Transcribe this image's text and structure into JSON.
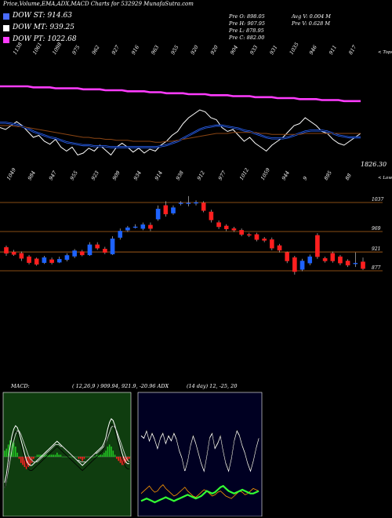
{
  "header": {
    "title": "Price,Volume,EMA,ADX,MACD Charts for 532929 MunafaSutra.com"
  },
  "legend": [
    {
      "label": "DOW ST: 914.63",
      "color": "#4a6cff"
    },
    {
      "label": "DOW MT: 939.25",
      "color": "#ffffff"
    },
    {
      "label": "DOW PT: 1022.68",
      "color": "#ff3cff"
    }
  ],
  "stats": {
    "col1": [
      "Pre  O: 898.05",
      "Pre  H: 907.95",
      "Pre  L: 878.95",
      "Pre  C: 882.00"
    ],
    "col2": [
      "Avg V: 0.004  M",
      "Pre  V: 0.628  M"
    ]
  },
  "colors": {
    "up": "#1e63ff",
    "down": "#ff1f1f",
    "ema_magenta": "#ff3cff",
    "ema_blue": "#2b66ff",
    "ema_brown": "#8b4513",
    "grid": "#b5651d",
    "macd_bg": "#0f3d0f",
    "adx_bg": "#000022"
  },
  "chart_data": [
    {
      "type": "line",
      "name": "price-ema-panel",
      "top_labels": [
        "1138",
        "1061",
        "1098",
        "975",
        "962",
        "927",
        "916",
        "963",
        "955",
        "920",
        "920",
        "904",
        "933",
        "931",
        "1035",
        "946",
        "911",
        "817"
      ],
      "bottom_labels": [
        "1049",
        "984",
        "947",
        "955",
        "923",
        "909",
        "934",
        "914",
        "938",
        "912",
        "977",
        "1012",
        "1059",
        "944",
        "9",
        "895",
        "88"
      ],
      "right_label_top": "< Tops",
      "right_label_bottom": "< Lows",
      "last_value_label": "1826.30",
      "series": [
        {
          "role": "price",
          "values": [
            62,
            64,
            60,
            56,
            60,
            66,
            72,
            70,
            76,
            79,
            74,
            82,
            86,
            82,
            90,
            88,
            83,
            86,
            80,
            85,
            90,
            82,
            78,
            82,
            87,
            83,
            88,
            84,
            86,
            80,
            76,
            70,
            66,
            58,
            52,
            48,
            44,
            46,
            52,
            54,
            62,
            66,
            64,
            70,
            76,
            72,
            78,
            82,
            86,
            80,
            76,
            72,
            66,
            60,
            58,
            52,
            56,
            60,
            66,
            68,
            74,
            78,
            80,
            76,
            72,
            68
          ]
        },
        {
          "role": "ema_fast",
          "values": [
            57,
            57,
            58,
            59,
            61,
            63,
            66,
            68,
            70,
            72,
            73,
            75,
            77,
            78,
            79,
            80,
            80,
            81,
            81,
            81,
            82,
            82,
            82,
            82,
            82,
            82,
            82,
            82,
            82,
            81,
            80,
            78,
            76,
            73,
            70,
            67,
            64,
            62,
            61,
            60,
            60,
            61,
            62,
            63,
            65,
            66,
            68,
            70,
            72,
            73,
            73,
            73,
            72,
            70,
            68,
            66,
            65,
            65,
            65,
            66,
            68,
            70,
            71,
            72,
            72,
            72
          ]
        },
        {
          "role": "ema_mid",
          "values": [
            60,
            60,
            60,
            61,
            61,
            62,
            63,
            64,
            65,
            66,
            67,
            68,
            69,
            70,
            71,
            72,
            72,
            73,
            73,
            74,
            74,
            75,
            75,
            75,
            76,
            76,
            76,
            76,
            77,
            77,
            76,
            76,
            75,
            74,
            73,
            72,
            71,
            70,
            69,
            68,
            68,
            68,
            67,
            67,
            67,
            67,
            67,
            68,
            68,
            69,
            69,
            69,
            69,
            69,
            69,
            68,
            68,
            68,
            68,
            68,
            68,
            68,
            68,
            68,
            68,
            68
          ]
        },
        {
          "role": "ema_slow",
          "values": [
            20,
            20,
            20,
            20,
            20,
            20,
            21,
            21,
            21,
            21,
            22,
            22,
            22,
            22,
            22,
            23,
            23,
            23,
            23,
            24,
            24,
            24,
            24,
            25,
            25,
            25,
            25,
            26,
            26,
            26,
            27,
            27,
            27,
            27,
            28,
            28,
            28,
            28,
            29,
            29,
            29,
            29,
            30,
            30,
            30,
            30,
            31,
            31,
            31,
            31,
            32,
            32,
            32,
            32,
            33,
            33,
            33,
            33,
            34,
            34,
            34,
            34,
            35,
            35,
            35,
            35
          ]
        }
      ]
    },
    {
      "type": "bar",
      "name": "candles-panel",
      "price_levels": [
        "1037",
        "969",
        "921",
        "877"
      ],
      "candles": [
        {
          "o": 932,
          "c": 918,
          "h": 936,
          "l": 912
        },
        {
          "o": 921,
          "c": 915,
          "h": 926,
          "l": 912
        },
        {
          "o": 918,
          "c": 906,
          "h": 922,
          "l": 900
        },
        {
          "o": 910,
          "c": 896,
          "h": 914,
          "l": 892
        },
        {
          "o": 905,
          "c": 892,
          "h": 908,
          "l": 889
        },
        {
          "o": 896,
          "c": 908,
          "h": 912,
          "l": 893
        },
        {
          "o": 903,
          "c": 896,
          "h": 908,
          "l": 892
        },
        {
          "o": 897,
          "c": 904,
          "h": 910,
          "l": 895
        },
        {
          "o": 903,
          "c": 913,
          "h": 918,
          "l": 899
        },
        {
          "o": 911,
          "c": 924,
          "h": 928,
          "l": 907
        },
        {
          "o": 922,
          "c": 914,
          "h": 926,
          "l": 911
        },
        {
          "o": 914,
          "c": 938,
          "h": 944,
          "l": 912
        },
        {
          "o": 938,
          "c": 930,
          "h": 944,
          "l": 926
        },
        {
          "o": 928,
          "c": 920,
          "h": 933,
          "l": 916
        },
        {
          "o": 916,
          "c": 952,
          "h": 958,
          "l": 914
        },
        {
          "o": 955,
          "c": 970,
          "h": 976,
          "l": 950
        },
        {
          "o": 972,
          "c": 978,
          "h": 982,
          "l": 968
        },
        {
          "o": 980,
          "c": 980,
          "h": 986,
          "l": 976
        },
        {
          "o": 976,
          "c": 985,
          "h": 990,
          "l": 972
        },
        {
          "o": 984,
          "c": 976,
          "h": 990,
          "l": 970
        },
        {
          "o": 998,
          "c": 1022,
          "h": 1030,
          "l": 994
        },
        {
          "o": 1030,
          "c": 1010,
          "h": 1040,
          "l": 1004
        },
        {
          "o": 1012,
          "c": 1025,
          "h": 1030,
          "l": 1008
        },
        {
          "o": 1035,
          "c": 1036,
          "h": 1040,
          "l": 1030
        },
        {
          "o": 1036,
          "c": 1036,
          "h": 1052,
          "l": 1028
        },
        {
          "o": 1036,
          "c": 1037,
          "h": 1042,
          "l": 1030
        },
        {
          "o": 1036,
          "c": 1018,
          "h": 1040,
          "l": 1014
        },
        {
          "o": 1015,
          "c": 996,
          "h": 1020,
          "l": 990
        },
        {
          "o": 990,
          "c": 980,
          "h": 995,
          "l": 975
        },
        {
          "o": 982,
          "c": 975,
          "h": 986,
          "l": 970
        },
        {
          "o": 976,
          "c": 972,
          "h": 980,
          "l": 968
        },
        {
          "o": 972,
          "c": 962,
          "h": 976,
          "l": 958
        },
        {
          "o": 962,
          "c": 960,
          "h": 966,
          "l": 956
        },
        {
          "o": 962,
          "c": 950,
          "h": 966,
          "l": 946
        },
        {
          "o": 952,
          "c": 948,
          "h": 956,
          "l": 944
        },
        {
          "o": 950,
          "c": 930,
          "h": 955,
          "l": 925
        },
        {
          "o": 936,
          "c": 925,
          "h": 940,
          "l": 920
        },
        {
          "o": 920,
          "c": 900,
          "h": 922,
          "l": 895
        },
        {
          "o": 908,
          "c": 875,
          "h": 912,
          "l": 868
        },
        {
          "o": 880,
          "c": 900,
          "h": 905,
          "l": 876
        },
        {
          "o": 895,
          "c": 910,
          "h": 915,
          "l": 890
        },
        {
          "o": 960,
          "c": 910,
          "h": 965,
          "l": 905
        },
        {
          "o": 906,
          "c": 900,
          "h": 910,
          "l": 896
        },
        {
          "o": 918,
          "c": 900,
          "h": 922,
          "l": 896
        },
        {
          "o": 910,
          "c": 895,
          "h": 914,
          "l": 890
        },
        {
          "o": 900,
          "c": 890,
          "h": 904,
          "l": 886
        },
        {
          "o": 895,
          "c": 895,
          "h": 920,
          "l": 886
        },
        {
          "o": 898,
          "c": 882,
          "h": 908,
          "l": 879
        }
      ]
    },
    {
      "type": "line",
      "name": "macd-panel",
      "series": [
        {
          "role": "macd",
          "values": [
            -15,
            -10,
            -2,
            6,
            12,
            16,
            18,
            17,
            14,
            10,
            6,
            2,
            -2,
            -4,
            -5,
            -5,
            -4,
            -3,
            -2,
            -1,
            0,
            1,
            2,
            3,
            4,
            5,
            6,
            7,
            8,
            9,
            8,
            7,
            6,
            5,
            4,
            3,
            2,
            1,
            0,
            -1,
            -2,
            -3,
            -4,
            -5,
            -4,
            -3,
            -2,
            -1,
            0,
            1,
            2,
            3,
            4,
            5,
            6,
            8,
            11,
            16,
            20,
            22,
            21,
            18,
            14,
            10,
            6,
            2,
            -1,
            -3,
            -4,
            -4
          ]
        },
        {
          "role": "signal",
          "values": [
            -18,
            -14,
            -8,
            -2,
            4,
            9,
            13,
            15,
            15,
            13,
            10,
            7,
            4,
            1,
            -1,
            -2,
            -3,
            -3,
            -3,
            -2,
            -1,
            0,
            1,
            2,
            3,
            4,
            5,
            6,
            7,
            7,
            7,
            6,
            6,
            5,
            4,
            3,
            2,
            1,
            0,
            -1,
            -2,
            -2,
            -3,
            -3,
            -3,
            -3,
            -2,
            -1,
            0,
            1,
            2,
            2,
            3,
            4,
            5,
            6,
            8,
            11,
            14,
            17,
            18,
            17,
            15,
            12,
            9,
            6,
            3,
            0,
            -2,
            -3
          ]
        },
        {
          "role": "histogram",
          "values": [
            3,
            4,
            6,
            8,
            8,
            7,
            5,
            2,
            -1,
            -3,
            -4,
            -5,
            -6,
            -5,
            -4,
            -3,
            -1,
            0,
            1,
            1,
            1,
            1,
            1,
            1,
            1,
            1,
            1,
            1,
            1,
            2,
            1,
            1,
            0,
            0,
            0,
            0,
            0,
            0,
            0,
            0,
            0,
            -1,
            -1,
            -2,
            -1,
            0,
            0,
            0,
            0,
            0,
            0,
            1,
            1,
            1,
            1,
            2,
            3,
            5,
            6,
            5,
            3,
            1,
            -1,
            -2,
            -3,
            -4,
            -4,
            -3,
            -2,
            -1
          ]
        }
      ]
    },
    {
      "type": "line",
      "name": "adx-panel",
      "series": [
        {
          "role": "adx",
          "values": [
            58,
            56,
            62,
            54,
            60,
            55,
            48,
            56,
            60,
            52,
            58,
            54,
            60,
            55,
            46,
            40,
            30,
            38,
            50,
            58,
            52,
            44,
            36,
            30,
            42,
            56,
            60,
            48,
            52,
            58,
            46,
            36,
            30,
            40,
            54,
            62,
            58,
            50,
            44,
            36,
            30,
            38,
            48,
            56
          ]
        },
        {
          "role": "plus_di",
          "values": [
            12,
            14,
            16,
            18,
            15,
            13,
            14,
            17,
            19,
            16,
            14,
            12,
            10,
            11,
            13,
            15,
            17,
            14,
            12,
            10,
            9,
            11,
            13,
            15,
            14,
            12,
            10,
            11,
            13,
            14,
            12,
            10,
            9,
            8,
            10,
            12,
            14,
            13,
            11,
            12,
            14,
            16,
            15,
            14
          ]
        },
        {
          "role": "minus_di",
          "values": [
            6,
            7,
            8,
            7,
            6,
            5,
            6,
            7,
            8,
            9,
            8,
            7,
            6,
            7,
            8,
            9,
            10,
            11,
            10,
            9,
            8,
            9,
            10,
            12,
            14,
            13,
            12,
            13,
            15,
            17,
            18,
            16,
            14,
            13,
            12,
            13,
            14,
            15,
            14,
            13,
            12,
            12,
            13,
            14
          ]
        }
      ]
    }
  ],
  "macd_header": {
    "label": "MACD:",
    "values": "( 12,26,9 ) 909.94,  921.9,  -20.96 ADX",
    "adx_values": "(14  day) 12,  -25,  20"
  }
}
